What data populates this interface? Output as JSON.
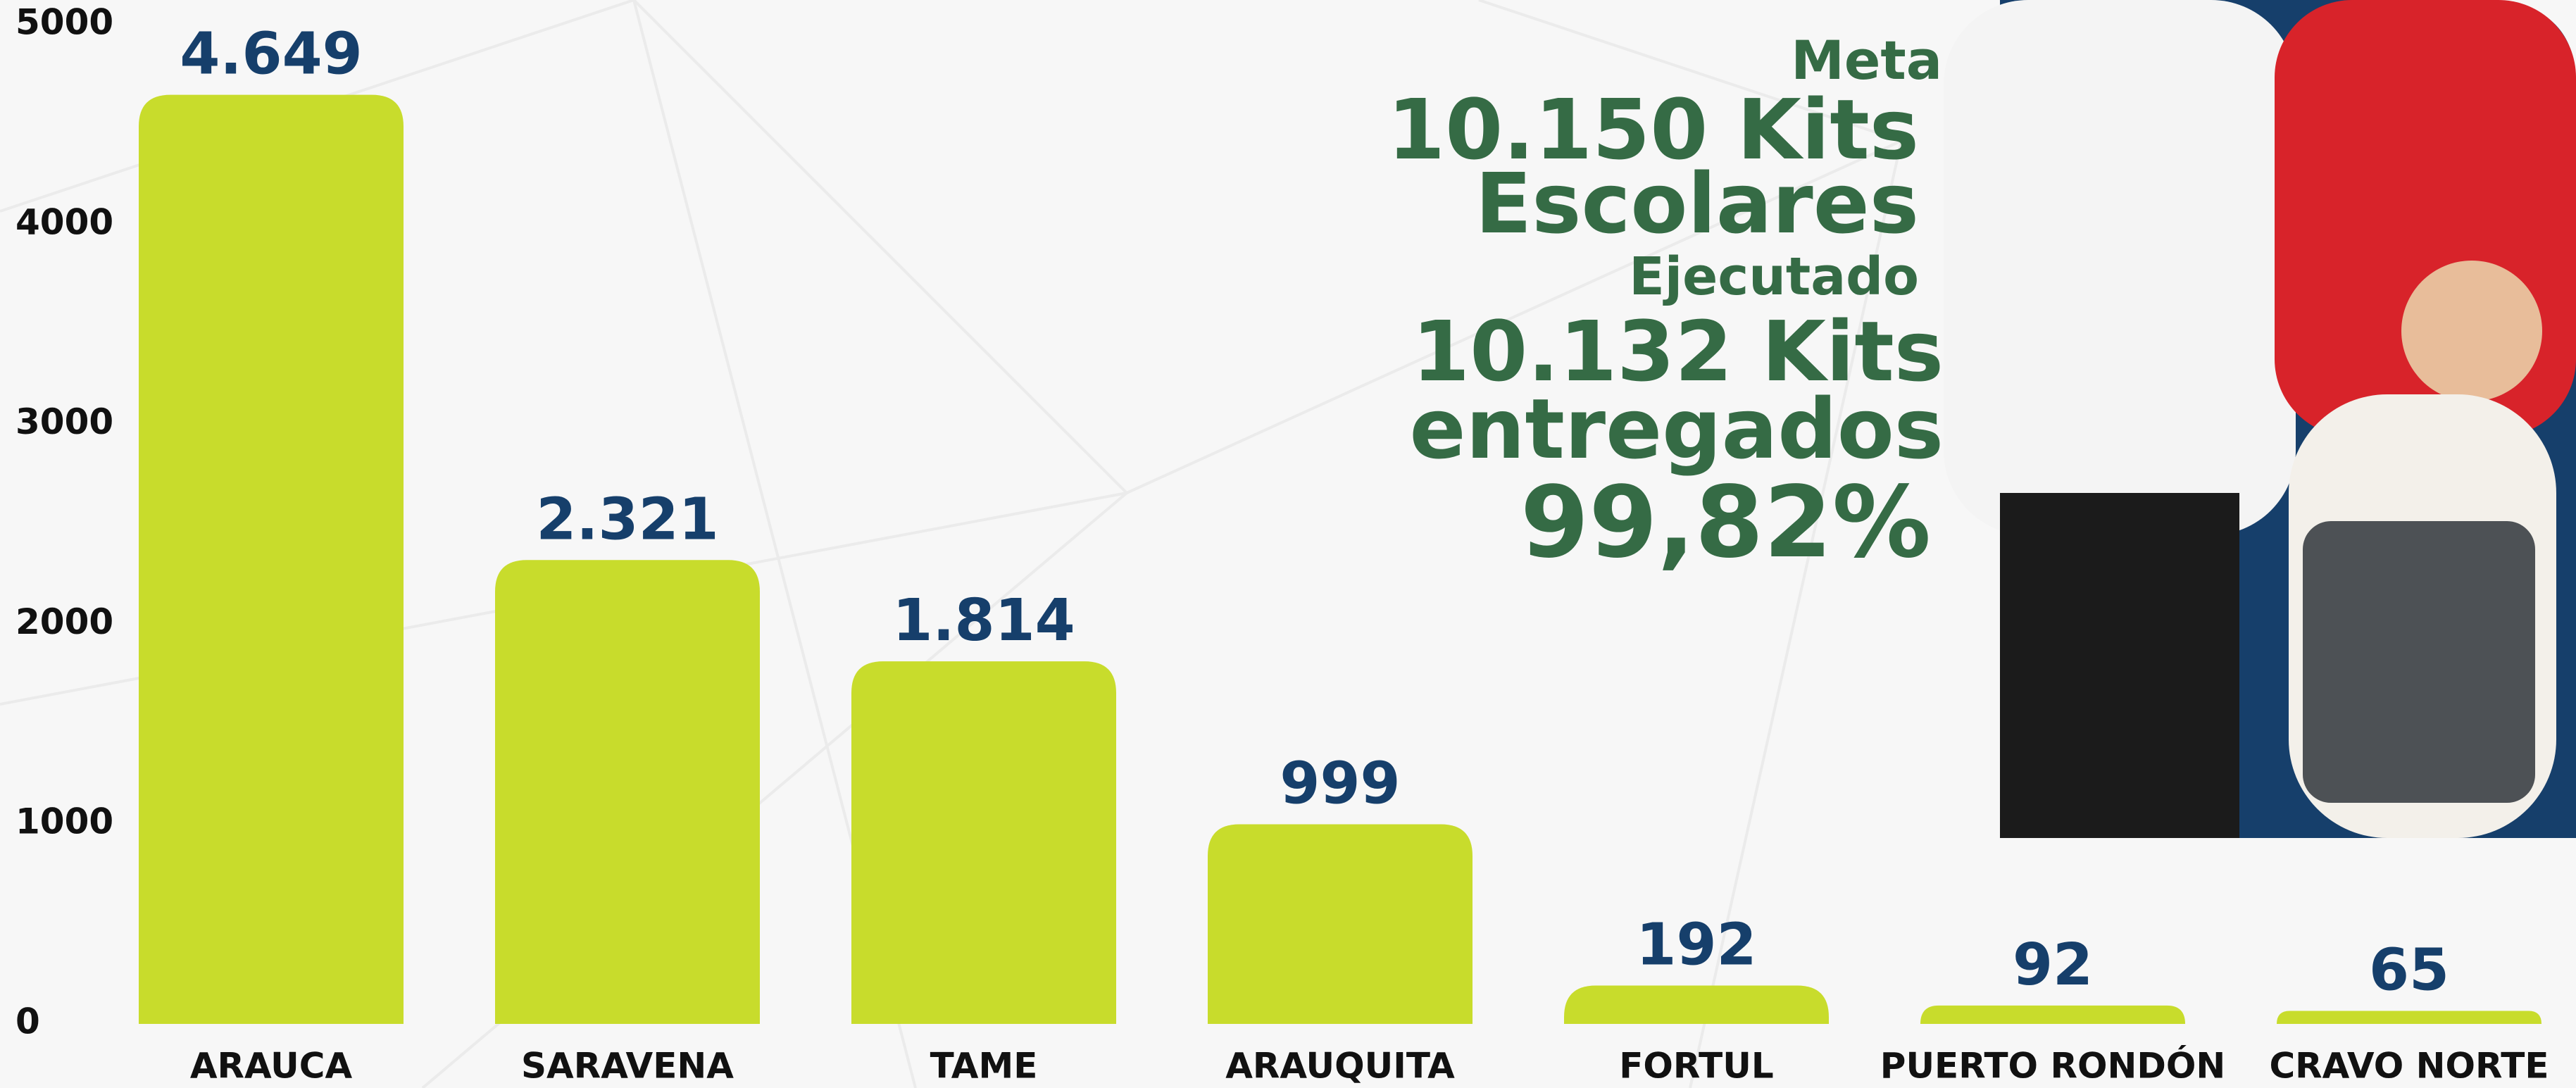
{
  "chart_data": {
    "type": "bar",
    "categories": [
      "ARAUCA",
      "SARAVENA",
      "TAME",
      "ARAUQUITA",
      "FORTUL",
      "PUERTO RONDÓN",
      "CRAVO NORTE"
    ],
    "values": [
      4649,
      2321,
      1814,
      999,
      192,
      92,
      65
    ],
    "value_labels": [
      "4.649",
      "2.321",
      "1.814",
      "999",
      "192",
      "92",
      "65"
    ],
    "color": "#c8dc2c",
    "ylim": [
      0,
      5000
    ],
    "yticks": [
      0,
      1000,
      2000,
      3000,
      4000,
      5000
    ],
    "grid": false,
    "annotations": [
      "Meta",
      "10.150 Kits",
      "Escolares",
      "Ejecutado",
      "10.132 Kits",
      "entregados",
      "99,82%"
    ]
  }
}
